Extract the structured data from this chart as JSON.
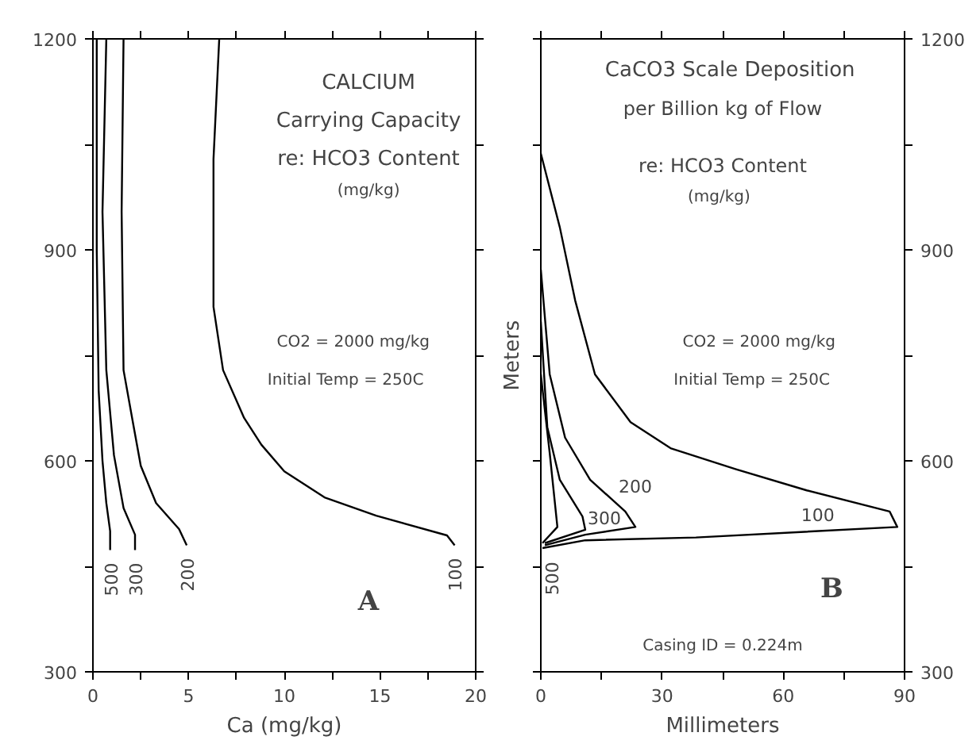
{
  "chart_data": [
    {
      "type": "line",
      "xlabel": "Ca (mg/kg)",
      "xlim": [
        0,
        20
      ],
      "xticks": [
        0,
        {
          "value": 2.5,
          "label": null
        },
        5,
        {
          "value": 7.5,
          "label": null
        },
        10,
        {
          "value": 12.5,
          "label": null
        },
        15,
        {
          "value": 17.5,
          "label": null
        },
        20
      ],
      "ylim": [
        300,
        1200
      ],
      "yticks": [
        300,
        {
          "value": 450,
          "label": null
        },
        600,
        {
          "value": 750,
          "label": null
        },
        900,
        {
          "value": 1050,
          "label": null
        },
        1200
      ],
      "grid": false,
      "marker": "none",
      "line_style": "solid",
      "series": [
        {
          "name": "100",
          "color": "#000000",
          "x": [
            6.6,
            6.3,
            6.3,
            6.8,
            7.9,
            8.8,
            10.0,
            12.1,
            14.8,
            18.5,
            18.9
          ],
          "values": [
            1200,
            1029,
            819,
            729,
            661,
            623,
            585,
            548,
            522,
            494,
            480
          ]
        },
        {
          "name": "200",
          "color": "#000000",
          "x": [
            1.6,
            1.5,
            1.6,
            2.1,
            2.5,
            3.3,
            4.5,
            4.9
          ],
          "values": [
            1200,
            954,
            729,
            653,
            593,
            540,
            503,
            480
          ]
        },
        {
          "name": "300",
          "color": "#000000",
          "x": [
            0.7,
            0.5,
            0.7,
            1.1,
            1.6,
            2.2,
            2.2
          ],
          "values": [
            1200,
            954,
            729,
            608,
            533,
            495,
            473
          ]
        },
        {
          "name": "500",
          "color": "#000000",
          "x": [
            0.2,
            0.2,
            0.3,
            0.5,
            0.7,
            0.9,
            0.9
          ],
          "values": [
            1200,
            900,
            700,
            600,
            540,
            500,
            473
          ]
        }
      ],
      "annotations": [
        "CALCIUM",
        "Carrying Capacity",
        "re: HCO3 Content",
        "(mg/kg)",
        "CO2 = 2000 mg/kg",
        "Initial Temp = 250C",
        "A"
      ]
    },
    {
      "type": "line",
      "xlabel": "Millimeters",
      "ylabel": "Meters",
      "xlim": [
        0,
        90
      ],
      "xticks": [
        0,
        {
          "value": 15,
          "label": null
        },
        30,
        {
          "value": 45,
          "label": null
        },
        60,
        {
          "value": 75,
          "label": null
        },
        90
      ],
      "ylim": [
        300,
        1200
      ],
      "yticks": [
        300,
        {
          "value": 450,
          "label": null
        },
        600,
        {
          "value": 750,
          "label": null
        },
        900,
        {
          "value": 1050,
          "label": null
        },
        1200
      ],
      "grid": false,
      "marker": "none",
      "line_style": "solid",
      "series": [
        {
          "name": "100",
          "color": "#000000",
          "x": [
            0,
            4.7,
            8.5,
            13.4,
            22.2,
            32.1,
            48.3,
            65.8,
            86.3,
            88.2,
            38.4,
            11,
            0.4
          ],
          "values": [
            1037,
            932,
            828,
            723,
            655,
            618,
            588,
            558,
            528,
            506,
            491,
            487,
            476
          ]
        },
        {
          "name": "200",
          "color": "#000000",
          "x": [
            0,
            2.2,
            6,
            12.2,
            20.9,
            23.4,
            11,
            1
          ],
          "values": [
            872,
            723,
            633,
            573,
            528,
            506,
            495,
            480
          ]
        },
        {
          "name": "300",
          "color": "#000000",
          "x": [
            0,
            1.6,
            4.7,
            10.3,
            11,
            1
          ],
          "values": [
            798,
            648,
            573,
            521,
            502,
            483
          ]
        },
        {
          "name": "500",
          "color": "#000000",
          "x": [
            0,
            2.2,
            4.1,
            0.4
          ],
          "values": [
            723,
            611,
            506,
            483
          ]
        }
      ],
      "annotations": [
        "CaCO3 Scale Deposition",
        "per Billion kg of Flow",
        "re: HCO3 Content",
        "(mg/kg)",
        "CO2 = 2000 mg/kg",
        "Initial Temp = 250C",
        "B",
        "Casing ID = 0.224m"
      ]
    }
  ]
}
